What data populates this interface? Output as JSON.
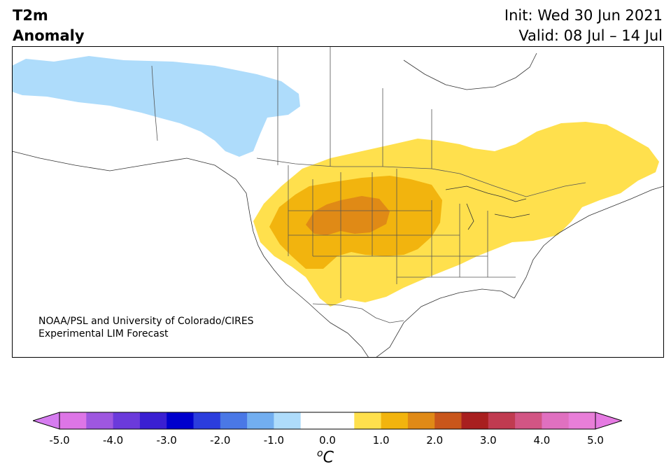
{
  "title": {
    "line1": "T2m",
    "line2": "Anomaly"
  },
  "init": {
    "text": "Init: Wed 30 Jun 2021"
  },
  "valid": {
    "text": "Valid: 08 Jul – 14 Jul"
  },
  "credit": {
    "line1": "NOAA/PSL and University of Colorado/CIRES",
    "line2": "Experimental LIM Forecast"
  },
  "colorbar": {
    "colors": [
      "#dd75e6",
      "#9e57e0",
      "#6b3adb",
      "#3a1fd2",
      "#0000cd",
      "#2b3ddd",
      "#4a78e6",
      "#72aef0",
      "#aedcfb",
      "#ffffff",
      "#ffffff",
      "#ffe04d",
      "#f2b40e",
      "#e08a16",
      "#c9561b",
      "#a81f1f",
      "#c03b50",
      "#d25584",
      "#e070c0",
      "#e87ed8"
    ],
    "under_color": "#d67cf0",
    "over_color": "#e57ae2",
    "ticks": [
      "-5.0",
      "-4.0",
      "-3.0",
      "-2.0",
      "-1.0",
      "0.0",
      "1.0",
      "2.0",
      "3.0",
      "4.0",
      "5.0"
    ],
    "unit_base": "C",
    "unit_sup": "o"
  },
  "map": {
    "region": "North America",
    "anomaly_colors": {
      "cold": "#aedcfb",
      "warm1": "#ffe04d",
      "warm2": "#f2b40e",
      "warm3": "#e08a16"
    }
  }
}
